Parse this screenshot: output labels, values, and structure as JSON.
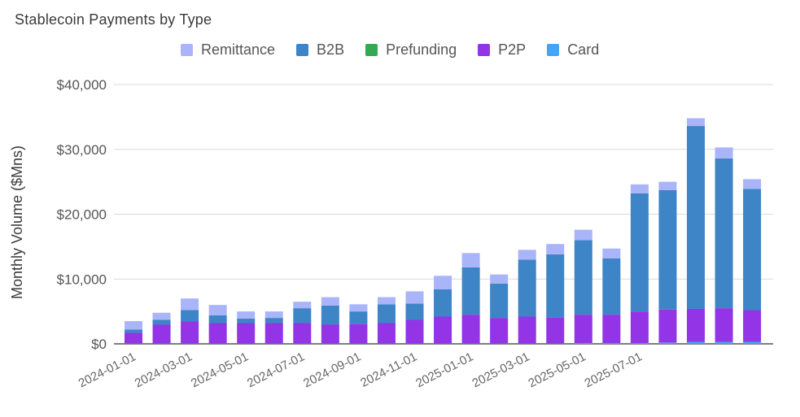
{
  "chart_data": {
    "type": "bar",
    "stacked": true,
    "title": "Stablecoin Payments by Type",
    "xlabel": "",
    "ylabel": "Monthly Volume ($Mns)",
    "ylim": [
      0,
      40000
    ],
    "yticks": [
      0,
      10000,
      20000,
      30000,
      40000
    ],
    "ytick_labels": [
      "$0",
      "$10,000",
      "$20,000",
      "$30,000",
      "$40,000"
    ],
    "legend_position": "top",
    "grid": true,
    "categories": [
      "2024-01-01",
      "2024-02-01",
      "2024-03-01",
      "2024-04-01",
      "2024-05-01",
      "2024-06-01",
      "2024-07-01",
      "2024-08-01",
      "2024-09-01",
      "2024-10-01",
      "2024-11-01",
      "2024-12-01",
      "2025-01-01",
      "2025-02-01",
      "2025-03-01",
      "2025-04-01",
      "2025-05-01",
      "2025-06-01",
      "2025-07-01",
      "2025-08-01",
      "2025-09-01",
      "2025-10-01",
      "2025-11-01"
    ],
    "x_tick_labels": [
      "2024-01-01",
      "2024-03-01",
      "2024-05-01",
      "2024-07-01",
      "2024-09-01",
      "2024-11-01",
      "2025-01-01",
      "2025-03-01",
      "2025-05-01",
      "2025-07-01"
    ],
    "series": [
      {
        "name": "Card",
        "color": "#42a5f5",
        "values": [
          50,
          50,
          50,
          50,
          50,
          50,
          50,
          50,
          50,
          50,
          50,
          50,
          50,
          50,
          50,
          50,
          100,
          100,
          100,
          200,
          300,
          300,
          300
        ]
      },
      {
        "name": "P2P",
        "color": "#9334e6",
        "values": [
          1650,
          2950,
          3450,
          3150,
          3150,
          3150,
          3150,
          2950,
          3050,
          3150,
          3650,
          4150,
          4450,
          3950,
          4150,
          4050,
          4400,
          4400,
          4900,
          5100,
          5100,
          5200,
          4900
        ]
      },
      {
        "name": "Prefunding",
        "color": "#34a853",
        "values": [
          0,
          0,
          0,
          0,
          0,
          0,
          0,
          0,
          0,
          0,
          0,
          0,
          0,
          0,
          0,
          0,
          0,
          0,
          0,
          0,
          0,
          0,
          0
        ]
      },
      {
        "name": "B2B",
        "color": "#3d85c6",
        "values": [
          500,
          700,
          1700,
          1200,
          700,
          800,
          2300,
          2900,
          1900,
          2900,
          2500,
          4200,
          7300,
          5300,
          8800,
          9700,
          11500,
          8700,
          18200,
          18400,
          28200,
          23100,
          18700
        ]
      },
      {
        "name": "Remittance",
        "color": "#aab4f8",
        "values": [
          1300,
          1100,
          1800,
          1600,
          1100,
          1000,
          1000,
          1300,
          1100,
          1100,
          1900,
          2100,
          2200,
          1400,
          1500,
          1600,
          1600,
          1500,
          1400,
          1300,
          1200,
          1700,
          1500
        ]
      }
    ],
    "legend_order": [
      "Remittance",
      "B2B",
      "Prefunding",
      "P2P",
      "Card"
    ]
  }
}
